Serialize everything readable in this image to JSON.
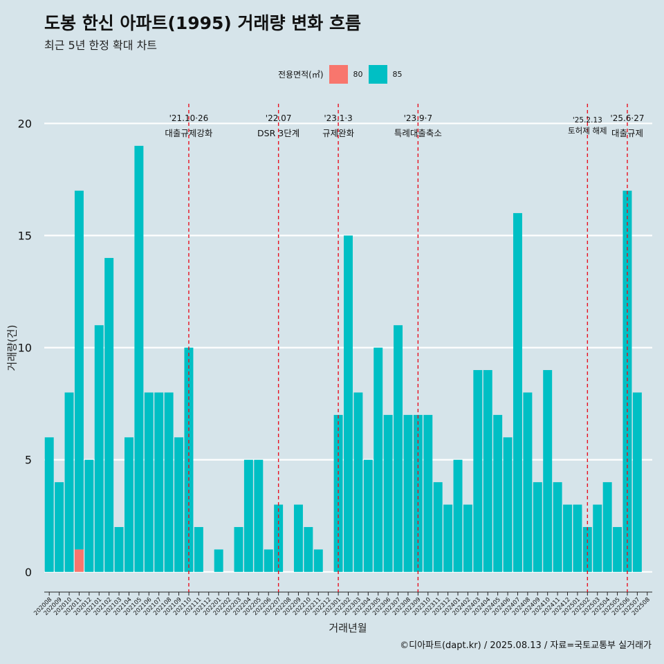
{
  "header": {
    "title": "도봉 한신 아파트(1995) 거래량 변화 흐름",
    "subtitle": "최근 5년 한정 확대 차트"
  },
  "legend": {
    "title": "전용면적(㎡)",
    "items": [
      {
        "label": "80",
        "color": "#f8766d"
      },
      {
        "label": "85",
        "color": "#00bfc4"
      }
    ]
  },
  "caption": "©디아파트(dapt.kr) / 2025.08.13 / 자료=국토교통부 실거래가",
  "chart_data": {
    "type": "bar",
    "xlabel": "거래년월",
    "ylabel": "거래량(건)",
    "ylim": [
      -0.9,
      21
    ],
    "yticks": [
      0,
      5,
      10,
      15,
      20
    ],
    "categories": [
      "202008",
      "202009",
      "202010",
      "202011",
      "202012",
      "202101",
      "202102",
      "202103",
      "202104",
      "202105",
      "202106",
      "202107",
      "202108",
      "202109",
      "202110",
      "202111",
      "202112",
      "202201",
      "202202",
      "202203",
      "202204",
      "202205",
      "202206",
      "202207",
      "202208",
      "202209",
      "202210",
      "202211",
      "202212",
      "202301",
      "202302",
      "202303",
      "202304",
      "202305",
      "202306",
      "202307",
      "202308",
      "202309",
      "202310",
      "202311",
      "202312",
      "202401",
      "202402",
      "202403",
      "202404",
      "202405",
      "202406",
      "202407",
      "202408",
      "202409",
      "202410",
      "202411",
      "202412",
      "202501",
      "202502",
      "202503",
      "202504",
      "202505",
      "202506",
      "202507",
      "202508"
    ],
    "series": [
      {
        "name": "80",
        "color": "#f8766d",
        "values": [
          0,
          0,
          0,
          1,
          0,
          0,
          0,
          0,
          0,
          0,
          0,
          0,
          0,
          0,
          0,
          0,
          0,
          0,
          0,
          0,
          0,
          0,
          0,
          0,
          0,
          0,
          0,
          0,
          0,
          0,
          0,
          0,
          0,
          0,
          0,
          0,
          0,
          0,
          0,
          0,
          0,
          0,
          0,
          0,
          0,
          0,
          0,
          0,
          0,
          0,
          0,
          0,
          0,
          0,
          0,
          0,
          0,
          0,
          0,
          0,
          0
        ]
      },
      {
        "name": "85",
        "color": "#00bfc4",
        "values": [
          6,
          4,
          8,
          16,
          5,
          11,
          14,
          2,
          6,
          19,
          8,
          8,
          8,
          6,
          10,
          2,
          0,
          1,
          0,
          2,
          5,
          5,
          1,
          3,
          0,
          3,
          2,
          1,
          0,
          7,
          15,
          8,
          5,
          10,
          7,
          11,
          7,
          7,
          7,
          4,
          3,
          5,
          3,
          9,
          9,
          7,
          6,
          16,
          8,
          4,
          9,
          4,
          3,
          3,
          2,
          3,
          4,
          2,
          17,
          8,
          0
        ]
      }
    ],
    "annotations": [
      {
        "category": "202110",
        "date": "'21.10·26",
        "text": "대출규제강화"
      },
      {
        "category": "202207",
        "date": "'22.07",
        "text": "DSR 3단계"
      },
      {
        "category": "202301",
        "date": "'23.1·3",
        "text": "규제완화"
      },
      {
        "category": "202309",
        "date": "'23.9·7",
        "text": "특례대출축소"
      },
      {
        "category": "202502",
        "date": "'25.2.13",
        "text": "토허제 해제"
      },
      {
        "category": "202506",
        "date": "'25.6·27",
        "text": "대출규제"
      }
    ]
  }
}
